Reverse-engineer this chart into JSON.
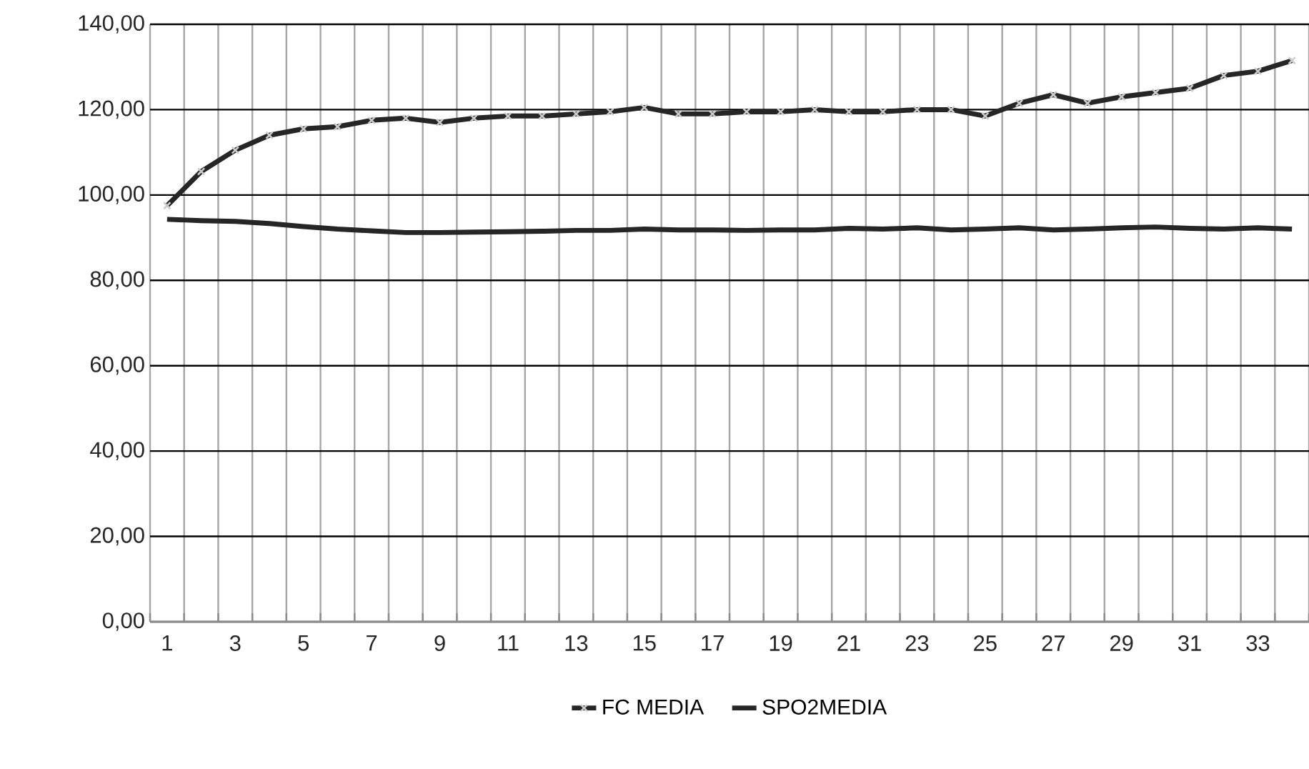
{
  "chart_data": {
    "type": "line",
    "categories": [
      "1",
      null,
      "3",
      null,
      "5",
      null,
      "7",
      null,
      "9",
      null,
      "11",
      null,
      "13",
      null,
      "15",
      null,
      "17",
      null,
      "19",
      null,
      "21",
      null,
      "23",
      null,
      "25",
      null,
      "27",
      null,
      "29",
      null,
      "31",
      null,
      "33",
      null
    ],
    "series": [
      {
        "name": "FC MEDIA",
        "color": "#262626",
        "marker": "cross",
        "values": [
          97.5,
          105.5,
          110.5,
          114,
          115.5,
          116,
          117.5,
          118,
          117,
          118,
          118.5,
          118.5,
          119,
          119.5,
          120.5,
          119,
          119,
          119.5,
          119.5,
          120,
          119.5,
          119.5,
          120,
          120,
          118.5,
          121.5,
          123.5,
          121.5,
          123,
          124,
          125,
          128,
          129,
          131.5
        ]
      },
      {
        "name": "SPO2MEDIA",
        "color": "#262626",
        "marker": "none",
        "values": [
          94.3,
          94,
          93.8,
          93.3,
          92.6,
          92,
          91.6,
          91.2,
          91.2,
          91.3,
          91.4,
          91.5,
          91.7,
          91.7,
          92,
          91.8,
          91.8,
          91.7,
          91.8,
          91.8,
          92.2,
          92,
          92.3,
          91.8,
          92,
          92.3,
          91.8,
          92,
          92.3,
          92.5,
          92.2,
          92,
          92.3,
          92
        ]
      }
    ],
    "ylim": [
      0,
      140
    ],
    "yticks": [
      {
        "value": 0,
        "label": "0,00"
      },
      {
        "value": 20,
        "label": "20,00"
      },
      {
        "value": 40,
        "label": "40,00"
      },
      {
        "value": 60,
        "label": "60,00"
      },
      {
        "value": 80,
        "label": "80,00"
      },
      {
        "value": 100,
        "label": "100,00"
      },
      {
        "value": 120,
        "label": "120,00"
      },
      {
        "value": 140,
        "label": "140,00"
      }
    ],
    "grid": true,
    "legend": "bottom"
  }
}
